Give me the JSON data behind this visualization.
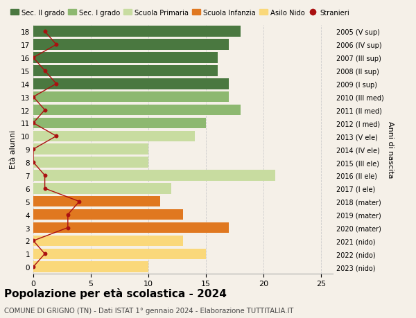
{
  "ages": [
    0,
    1,
    2,
    3,
    4,
    5,
    6,
    7,
    8,
    9,
    10,
    11,
    12,
    13,
    14,
    15,
    16,
    17,
    18
  ],
  "right_labels": [
    "2023 (nido)",
    "2022 (nido)",
    "2021 (nido)",
    "2020 (mater)",
    "2019 (mater)",
    "2018 (mater)",
    "2017 (I ele)",
    "2016 (II ele)",
    "2015 (III ele)",
    "2014 (IV ele)",
    "2013 (V ele)",
    "2012 (I med)",
    "2011 (II med)",
    "2010 (III med)",
    "2009 (I sup)",
    "2008 (II sup)",
    "2007 (III sup)",
    "2006 (IV sup)",
    "2005 (V sup)"
  ],
  "bar_values": [
    10,
    15,
    13,
    17,
    13,
    11,
    12,
    21,
    10,
    10,
    14,
    15,
    18,
    17,
    17,
    16,
    16,
    17,
    18
  ],
  "stranieri": [
    0,
    1,
    0,
    3,
    3,
    4,
    1,
    1,
    0,
    0,
    2,
    0,
    1,
    0,
    2,
    1,
    0,
    2,
    1
  ],
  "bar_colors": {
    "asilo_nido": "#FAD87A",
    "scuola_infanzia": "#E07820",
    "scuola_primaria": "#C8DCA0",
    "sec_i_grado": "#8DB870",
    "sec_ii_grado": "#4A7840"
  },
  "age_to_category": {
    "0": "asilo_nido",
    "1": "asilo_nido",
    "2": "asilo_nido",
    "3": "scuola_infanzia",
    "4": "scuola_infanzia",
    "5": "scuola_infanzia",
    "6": "scuola_primaria",
    "7": "scuola_primaria",
    "8": "scuola_primaria",
    "9": "scuola_primaria",
    "10": "scuola_primaria",
    "11": "sec_i_grado",
    "12": "sec_i_grado",
    "13": "sec_i_grado",
    "14": "sec_ii_grado",
    "15": "sec_ii_grado",
    "16": "sec_ii_grado",
    "17": "sec_ii_grado",
    "18": "sec_ii_grado"
  },
  "legend_items": [
    {
      "label": "Sec. II grado",
      "color": "#4A7840",
      "type": "patch"
    },
    {
      "label": "Sec. I grado",
      "color": "#8DB870",
      "type": "patch"
    },
    {
      "label": "Scuola Primaria",
      "color": "#C8DCA0",
      "type": "patch"
    },
    {
      "label": "Scuola Infanzia",
      "color": "#E07820",
      "type": "patch"
    },
    {
      "label": "Asilo Nido",
      "color": "#FAD87A",
      "type": "patch"
    },
    {
      "label": "Stranieri",
      "color": "#AA1010",
      "type": "line"
    }
  ],
  "ylabel_left": "Età alunni",
  "ylabel_right": "Anni di nascita",
  "title": "Popolazione per età scolastica - 2024",
  "subtitle": "COMUNE DI GRIGNO (TN) - Dati ISTAT 1° gennaio 2024 - Elaborazione TUTTITALIA.IT",
  "xlim": [
    0,
    26
  ],
  "stranieri_color": "#AA1010",
  "background_color": "#F5F0E8",
  "grid_color": "#CCCCCC"
}
